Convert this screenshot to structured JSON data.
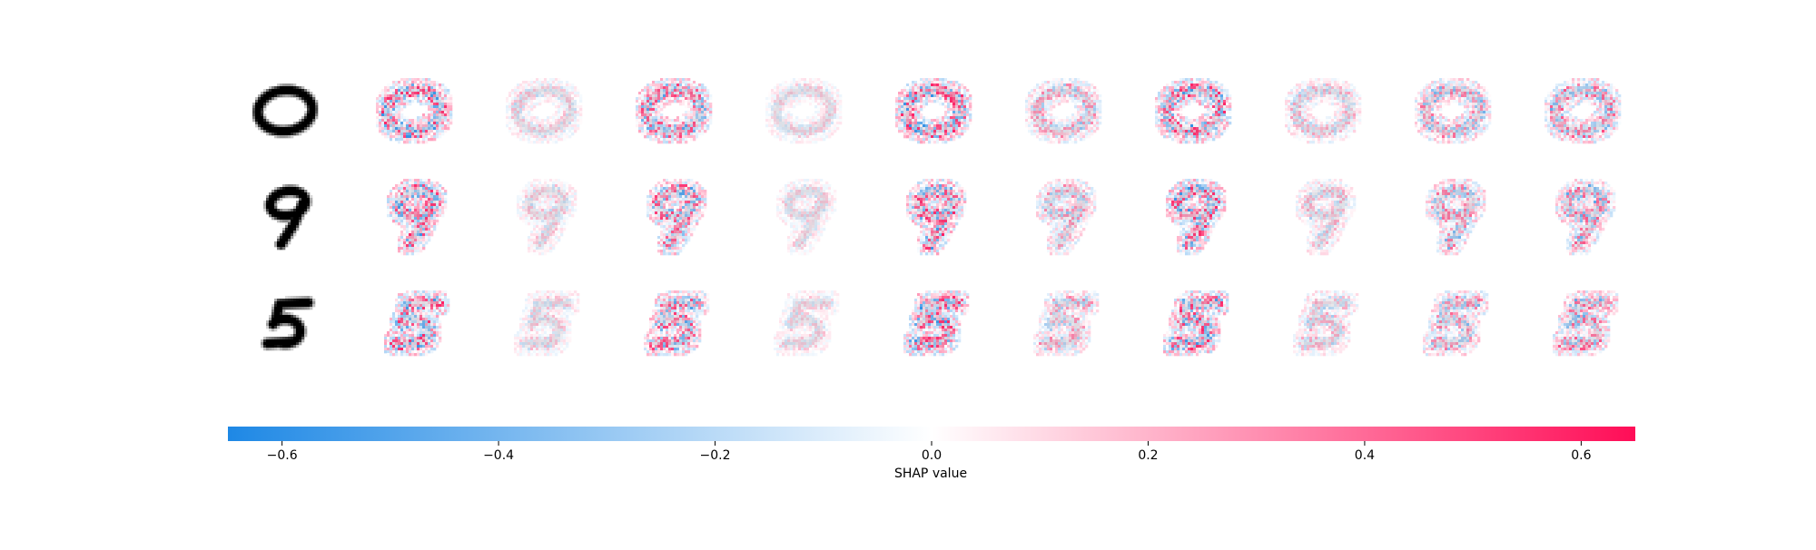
{
  "chart_data": {
    "type": "heatmap",
    "description_kind": "shap-image-plot",
    "rows": [
      {
        "input_digit": "0",
        "panels": 10
      },
      {
        "input_digit": "9",
        "panels": 10
      },
      {
        "input_digit": "5",
        "panels": 10
      }
    ],
    "colorbar": {
      "label": "SHAP value",
      "range": [
        -0.65,
        0.65
      ],
      "ticks": [
        -0.6,
        -0.4,
        -0.2,
        0.0,
        0.2,
        0.4,
        0.6
      ],
      "tick_labels": [
        "−0.6",
        "−0.4",
        "−0.2",
        "0.0",
        "0.2",
        "0.4",
        "0.6"
      ],
      "colors": {
        "negative": "#1e88e5",
        "neutral": "#ffffff",
        "positive": "#ff0d57"
      }
    },
    "digit_color": "#000000",
    "overlay_color": "#b4b4c0"
  }
}
